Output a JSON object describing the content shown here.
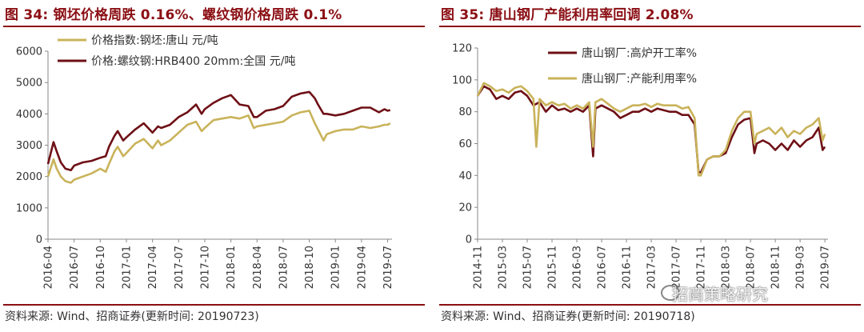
{
  "colors": {
    "title": "#8b0f14",
    "dark_red": "#6e1016",
    "gold": "#c9b35a",
    "axis": "#888888"
  },
  "panels": [
    {
      "title": "图 34:  钢坯价格周跌 0.16%、螺纹钢价格周跌 0.1%",
      "source": "资料来源: Wind、招商证券(更新时间: 20190723)"
    },
    {
      "title": "图 35:  唐山钢厂产能利用率回调 2.08%",
      "source": "资料来源: Wind、招商证券(更新时间: 20190718)"
    }
  ],
  "watermark": {
    "text": "招商策略研究",
    "icon": "wechat-icon"
  },
  "chart_data": [
    {
      "type": "line",
      "ylim": [
        0,
        6000
      ],
      "yticks": [
        "0",
        "1000",
        "2000",
        "3000",
        "4000",
        "5000",
        "6000"
      ],
      "xticks": [
        "2016-04",
        "2016-07",
        "2016-10",
        "2017-01",
        "2017-04",
        "2017-07",
        "2017-10",
        "2018-01",
        "2018-04",
        "2018-07",
        "2018-10",
        "2019-01",
        "2019-04",
        "2019-07"
      ],
      "xlim": [
        "2016-04",
        "2019-07"
      ],
      "legend_position": "top-left",
      "grid": false,
      "series": [
        {
          "name": "价格指数:钢坯:唐山 元/吨",
          "color": "#c9b35a",
          "points": [
            [
              "2016-04",
              2000
            ],
            [
              "2016-04-20",
              2550
            ],
            [
              "2016-05",
              2250
            ],
            [
              "2016-05-15",
              2000
            ],
            [
              "2016-06",
              1850
            ],
            [
              "2016-06-20",
              1800
            ],
            [
              "2016-07",
              1900
            ],
            [
              "2016-08",
              2000
            ],
            [
              "2016-09",
              2100
            ],
            [
              "2016-10",
              2250
            ],
            [
              "2016-10-20",
              2150
            ],
            [
              "2016-11",
              2400
            ],
            [
              "2016-11-20",
              2800
            ],
            [
              "2016-12",
              2950
            ],
            [
              "2016-12-20",
              2650
            ],
            [
              "2017-01",
              2750
            ],
            [
              "2017-02",
              3050
            ],
            [
              "2017-03",
              3200
            ],
            [
              "2017-04",
              2900
            ],
            [
              "2017-04-20",
              3150
            ],
            [
              "2017-05",
              3000
            ],
            [
              "2017-06",
              3150
            ],
            [
              "2017-07",
              3400
            ],
            [
              "2017-08",
              3650
            ],
            [
              "2017-09",
              3750
            ],
            [
              "2017-09-20",
              3450
            ],
            [
              "2017-10",
              3550
            ],
            [
              "2017-11",
              3800
            ],
            [
              "2017-12",
              3850
            ],
            [
              "2018-01",
              3900
            ],
            [
              "2018-02",
              3850
            ],
            [
              "2018-03",
              3950
            ],
            [
              "2018-03-20",
              3550
            ],
            [
              "2018-04",
              3600
            ],
            [
              "2018-05",
              3650
            ],
            [
              "2018-06",
              3700
            ],
            [
              "2018-07",
              3750
            ],
            [
              "2018-08",
              3950
            ],
            [
              "2018-09",
              4050
            ],
            [
              "2018-10",
              4100
            ],
            [
              "2018-10-20",
              3700
            ],
            [
              "2018-11",
              3500
            ],
            [
              "2018-11-20",
              3150
            ],
            [
              "2018-12",
              3350
            ],
            [
              "2019-01",
              3450
            ],
            [
              "2019-02",
              3500
            ],
            [
              "2019-03",
              3500
            ],
            [
              "2019-04",
              3600
            ],
            [
              "2019-05",
              3550
            ],
            [
              "2019-06",
              3600
            ],
            [
              "2019-06-20",
              3650
            ],
            [
              "2019-07",
              3650
            ],
            [
              "2019-07-10",
              3700
            ]
          ]
        },
        {
          "name": "价格:螺纹钢:HRB400 20mm:全国 元/吨",
          "color": "#6e1016",
          "points": [
            [
              "2016-04",
              2400
            ],
            [
              "2016-04-20",
              3100
            ],
            [
              "2016-05",
              2800
            ],
            [
              "2016-05-15",
              2450
            ],
            [
              "2016-06",
              2250
            ],
            [
              "2016-06-20",
              2200
            ],
            [
              "2016-07",
              2350
            ],
            [
              "2016-08",
              2450
            ],
            [
              "2016-09",
              2500
            ],
            [
              "2016-10",
              2600
            ],
            [
              "2016-10-20",
              2650
            ],
            [
              "2016-11",
              2950
            ],
            [
              "2016-11-20",
              3300
            ],
            [
              "2016-12",
              3450
            ],
            [
              "2016-12-20",
              3150
            ],
            [
              "2017-01",
              3250
            ],
            [
              "2017-02",
              3500
            ],
            [
              "2017-03",
              3700
            ],
            [
              "2017-04",
              3400
            ],
            [
              "2017-04-20",
              3600
            ],
            [
              "2017-05",
              3550
            ],
            [
              "2017-06",
              3650
            ],
            [
              "2017-07",
              3900
            ],
            [
              "2017-08",
              4050
            ],
            [
              "2017-09",
              4300
            ],
            [
              "2017-09-20",
              4000
            ],
            [
              "2017-10",
              4150
            ],
            [
              "2017-11",
              4350
            ],
            [
              "2017-12",
              4500
            ],
            [
              "2018-01",
              4600
            ],
            [
              "2018-02",
              4300
            ],
            [
              "2018-03",
              4250
            ],
            [
              "2018-03-20",
              3900
            ],
            [
              "2018-04",
              3900
            ],
            [
              "2018-05",
              4100
            ],
            [
              "2018-06",
              4150
            ],
            [
              "2018-07",
              4250
            ],
            [
              "2018-08",
              4550
            ],
            [
              "2018-09",
              4650
            ],
            [
              "2018-10",
              4700
            ],
            [
              "2018-10-20",
              4500
            ],
            [
              "2018-11",
              4300
            ],
            [
              "2018-11-20",
              4000
            ],
            [
              "2018-12",
              4000
            ],
            [
              "2019-01",
              3950
            ],
            [
              "2019-02",
              4000
            ],
            [
              "2019-03",
              4100
            ],
            [
              "2019-04",
              4200
            ],
            [
              "2019-05",
              4200
            ],
            [
              "2019-06",
              4050
            ],
            [
              "2019-06-20",
              4150
            ],
            [
              "2019-07",
              4100
            ],
            [
              "2019-07-10",
              4120
            ]
          ]
        }
      ]
    },
    {
      "type": "line",
      "ylim": [
        0,
        120
      ],
      "yticks": [
        "0",
        "20",
        "40",
        "60",
        "80",
        "100",
        "120"
      ],
      "xticks": [
        "2014-11",
        "2015-03",
        "2015-07",
        "2015-11",
        "2016-03",
        "2016-07",
        "2016-11",
        "2017-03",
        "2017-07",
        "2017-11",
        "2018-03",
        "2018-07",
        "2018-11",
        "2019-03",
        "2019-07"
      ],
      "xlim": [
        "2014-11",
        "2019-07"
      ],
      "legend_position": "top-right",
      "grid": false,
      "series": [
        {
          "name": "唐山钢厂:高炉开工率%",
          "color": "#6e1016",
          "points": [
            [
              "2014-11",
              90
            ],
            [
              "2014-12",
              96
            ],
            [
              "2015-01",
              94
            ],
            [
              "2015-02",
              88
            ],
            [
              "2015-03",
              90
            ],
            [
              "2015-04",
              88
            ],
            [
              "2015-05",
              92
            ],
            [
              "2015-06",
              93
            ],
            [
              "2015-07",
              90
            ],
            [
              "2015-08",
              84
            ],
            [
              "2015-09",
              86
            ],
            [
              "2015-10",
              80
            ],
            [
              "2015-11",
              84
            ],
            [
              "2015-12",
              81
            ],
            [
              "2016-01",
              82
            ],
            [
              "2016-02",
              80
            ],
            [
              "2016-03",
              82
            ],
            [
              "2016-04",
              80
            ],
            [
              "2016-05",
              84
            ],
            [
              "2016-05-20",
              52
            ],
            [
              "2016-06",
              82
            ],
            [
              "2016-07",
              84
            ],
            [
              "2016-08",
              82
            ],
            [
              "2016-09",
              80
            ],
            [
              "2016-10",
              76
            ],
            [
              "2016-11",
              78
            ],
            [
              "2016-12",
              80
            ],
            [
              "2017-01",
              80
            ],
            [
              "2017-02",
              82
            ],
            [
              "2017-03",
              80
            ],
            [
              "2017-04",
              82
            ],
            [
              "2017-05",
              81
            ],
            [
              "2017-06",
              80
            ],
            [
              "2017-07",
              80
            ],
            [
              "2017-08",
              78
            ],
            [
              "2017-09",
              78
            ],
            [
              "2017-10",
              72
            ],
            [
              "2017-10-20",
              42
            ],
            [
              "2017-11",
              42
            ],
            [
              "2017-12",
              50
            ],
            [
              "2018-01",
              52
            ],
            [
              "2018-02",
              52
            ],
            [
              "2018-03",
              54
            ],
            [
              "2018-04",
              64
            ],
            [
              "2018-05",
              72
            ],
            [
              "2018-06",
              75
            ],
            [
              "2018-07",
              76
            ],
            [
              "2018-07-20",
              54
            ],
            [
              "2018-08",
              60
            ],
            [
              "2018-09",
              62
            ],
            [
              "2018-10",
              60
            ],
            [
              "2018-11",
              56
            ],
            [
              "2018-12",
              60
            ],
            [
              "2019-01",
              56
            ],
            [
              "2019-02",
              62
            ],
            [
              "2019-03",
              58
            ],
            [
              "2019-04",
              62
            ],
            [
              "2019-05",
              64
            ],
            [
              "2019-06",
              70
            ],
            [
              "2019-06-20",
              56
            ],
            [
              "2019-07",
              58
            ]
          ]
        },
        {
          "name": "唐山钢厂:产能利用率%",
          "color": "#c9b35a",
          "points": [
            [
              "2014-11",
              90
            ],
            [
              "2014-12",
              98
            ],
            [
              "2015-01",
              96
            ],
            [
              "2015-02",
              93
            ],
            [
              "2015-03",
              94
            ],
            [
              "2015-04",
              92
            ],
            [
              "2015-05",
              95
            ],
            [
              "2015-06",
              96
            ],
            [
              "2015-07",
              93
            ],
            [
              "2015-08",
              88
            ],
            [
              "2015-08-15",
              58
            ],
            [
              "2015-09",
              88
            ],
            [
              "2015-10",
              84
            ],
            [
              "2015-11",
              86
            ],
            [
              "2015-12",
              84
            ],
            [
              "2016-01",
              85
            ],
            [
              "2016-02",
              82
            ],
            [
              "2016-03",
              84
            ],
            [
              "2016-04",
              82
            ],
            [
              "2016-05",
              86
            ],
            [
              "2016-05-20",
              58
            ],
            [
              "2016-06",
              86
            ],
            [
              "2016-07",
              88
            ],
            [
              "2016-08",
              85
            ],
            [
              "2016-09",
              82
            ],
            [
              "2016-10",
              80
            ],
            [
              "2016-11",
              82
            ],
            [
              "2016-12",
              84
            ],
            [
              "2017-01",
              84
            ],
            [
              "2017-02",
              85
            ],
            [
              "2017-03",
              83
            ],
            [
              "2017-04",
              85
            ],
            [
              "2017-05",
              84
            ],
            [
              "2017-06",
              84
            ],
            [
              "2017-07",
              84
            ],
            [
              "2017-08",
              82
            ],
            [
              "2017-09",
              83
            ],
            [
              "2017-10",
              76
            ],
            [
              "2017-10-20",
              40
            ],
            [
              "2017-11",
              40
            ],
            [
              "2017-12",
              50
            ],
            [
              "2018-01",
              52
            ],
            [
              "2018-02",
              52
            ],
            [
              "2018-03",
              56
            ],
            [
              "2018-04",
              68
            ],
            [
              "2018-05",
              76
            ],
            [
              "2018-06",
              80
            ],
            [
              "2018-07",
              80
            ],
            [
              "2018-07-20",
              60
            ],
            [
              "2018-08",
              66
            ],
            [
              "2018-09",
              68
            ],
            [
              "2018-10",
              70
            ],
            [
              "2018-11",
              66
            ],
            [
              "2018-12",
              70
            ],
            [
              "2019-01",
              64
            ],
            [
              "2019-02",
              68
            ],
            [
              "2019-03",
              66
            ],
            [
              "2019-04",
              70
            ],
            [
              "2019-05",
              72
            ],
            [
              "2019-06",
              76
            ],
            [
              "2019-06-20",
              62
            ],
            [
              "2019-07",
              66
            ]
          ]
        }
      ]
    }
  ]
}
